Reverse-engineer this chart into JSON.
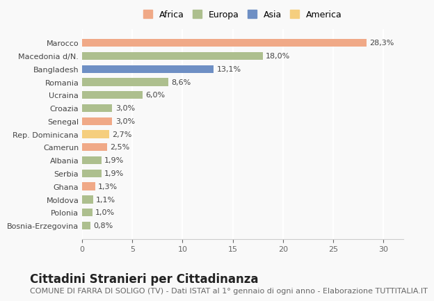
{
  "countries": [
    "Bosnia-Erzegovina",
    "Polonia",
    "Moldova",
    "Ghana",
    "Serbia",
    "Albania",
    "Camerun",
    "Rep. Dominicana",
    "Senegal",
    "Croazia",
    "Ucraina",
    "Romania",
    "Bangladesh",
    "Macedonia d/N.",
    "Marocco"
  ],
  "values": [
    0.8,
    1.0,
    1.1,
    1.3,
    1.9,
    1.9,
    2.5,
    2.7,
    3.0,
    3.0,
    6.0,
    8.6,
    13.1,
    18.0,
    28.3
  ],
  "labels": [
    "0,8%",
    "1,0%",
    "1,1%",
    "1,3%",
    "1,9%",
    "1,9%",
    "2,5%",
    "2,7%",
    "3,0%",
    "3,0%",
    "6,0%",
    "8,6%",
    "13,1%",
    "18,0%",
    "28,3%"
  ],
  "continents": [
    "Europa",
    "Europa",
    "Europa",
    "Africa",
    "Europa",
    "Europa",
    "Africa",
    "America",
    "Africa",
    "Europa",
    "Europa",
    "Europa",
    "Asia",
    "Europa",
    "Africa"
  ],
  "continent_colors": {
    "Africa": "#F0A987",
    "Europa": "#ADBF8E",
    "Asia": "#6E8FC4",
    "America": "#F5CE7E"
  },
  "legend_order": [
    "Africa",
    "Europa",
    "Asia",
    "America"
  ],
  "xlim": [
    0,
    32
  ],
  "xticks": [
    0,
    5,
    10,
    15,
    20,
    25,
    30
  ],
  "title": "Cittadini Stranieri per Cittadinanza",
  "subtitle": "COMUNE DI FARRA DI SOLIGO (TV) - Dati ISTAT al 1° gennaio di ogni anno - Elaborazione TUTTITALIA.IT",
  "background_color": "#f9f9f9",
  "bar_height": 0.6,
  "title_fontsize": 12,
  "subtitle_fontsize": 8,
  "label_fontsize": 8,
  "tick_fontsize": 8,
  "legend_fontsize": 9
}
